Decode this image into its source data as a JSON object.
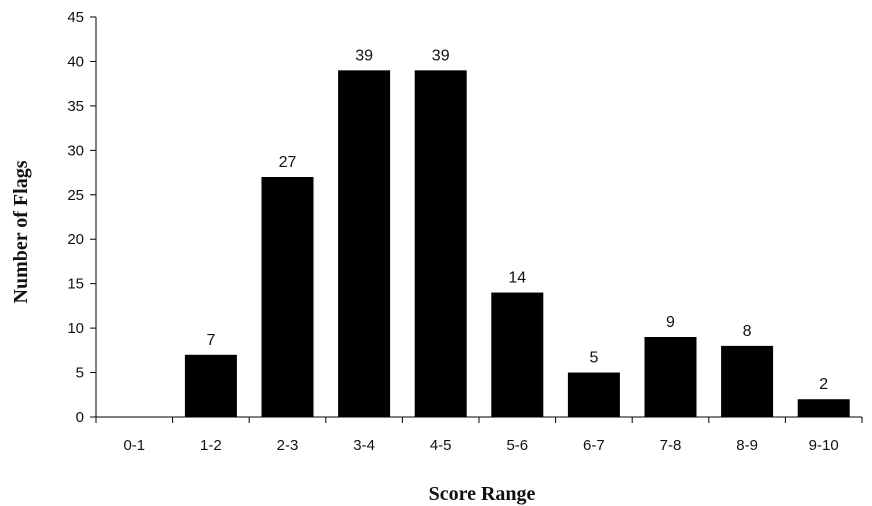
{
  "chart_data": {
    "type": "bar",
    "categories": [
      "0-1",
      "1-2",
      "2-3",
      "3-4",
      "4-5",
      "5-6",
      "6-7",
      "7-8",
      "8-9",
      "9-10"
    ],
    "values": [
      0,
      7,
      27,
      39,
      39,
      14,
      5,
      9,
      8,
      2
    ],
    "data_labels": [
      "",
      "7",
      "27",
      "39",
      "39",
      "14",
      "5",
      "9",
      "8",
      "2"
    ],
    "xlabel": "Score Range",
    "ylabel": "Number of Flags",
    "ylim": [
      0,
      45
    ],
    "yticks": [
      0,
      5,
      10,
      15,
      20,
      25,
      30,
      35,
      40,
      45
    ],
    "grid": false,
    "legend": "none",
    "bar_color": "#000000"
  }
}
